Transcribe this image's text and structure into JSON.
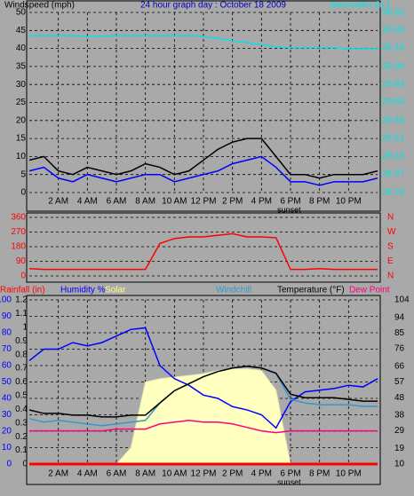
{
  "chart_data": [
    {
      "type": "line",
      "title": "24 hour graph day : October 18 2009",
      "ylabel": "Windspeed (mph)",
      "x": [
        0,
        1,
        2,
        3,
        4,
        5,
        6,
        7,
        8,
        9,
        10,
        11,
        12,
        13,
        14,
        15,
        16,
        17,
        18,
        19,
        20,
        21,
        22,
        23,
        24
      ],
      "xlim": [
        0,
        24
      ],
      "xticks": [
        {
          "value": 2,
          "label": "2 AM"
        },
        {
          "value": 4,
          "label": "4 AM"
        },
        {
          "value": 6,
          "label": "6 AM"
        },
        {
          "value": 8,
          "label": "8 AM"
        },
        {
          "value": 10,
          "label": "10 AM"
        },
        {
          "value": 12,
          "label": "12 PM"
        },
        {
          "value": 14,
          "label": "2 PM"
        },
        {
          "value": 16,
          "label": "4 PM"
        },
        {
          "value": 18,
          "label": "6 PM"
        },
        {
          "value": 20,
          "label": "8 PM"
        },
        {
          "value": 22,
          "label": "10 PM"
        }
      ],
      "annotations": [
        {
          "text": "sunset",
          "x": 17.9
        }
      ],
      "ylim": [
        0,
        50
      ],
      "yticks": [
        0,
        5,
        10,
        15,
        20,
        25,
        30,
        35,
        40,
        45,
        50
      ],
      "ycolor": "#000000",
      "y2lim": [
        28.79,
        30.52
      ],
      "y2ticks": [
        28.79,
        28.97,
        29.14,
        29.31,
        29.48,
        29.66,
        29.83,
        {
          "value": 30,
          "label": "30.00"
        },
        30.18,
        30.35,
        30.52
      ],
      "y2color": "#00e5e5",
      "grid": true,
      "series": [
        {
          "color": "#000000",
          "values": [
            9,
            10,
            6,
            5,
            7,
            6,
            5,
            6,
            8,
            7,
            5,
            6,
            9,
            12,
            14,
            15,
            15,
            10,
            5,
            5,
            4,
            5,
            5,
            5,
            6
          ]
        },
        {
          "color": "#0000ff",
          "values": [
            6,
            7,
            4,
            3,
            5,
            4,
            3,
            4,
            5,
            5,
            3,
            4,
            5,
            6,
            8,
            9,
            10,
            7,
            3,
            3,
            2,
            3,
            3,
            3,
            4
          ]
        },
        {
          "name": "Barometer (in.)",
          "color": "#00e5e5",
          "axis": "y2",
          "values": [
            30.3,
            30.3,
            30.3,
            30.3,
            30.29,
            30.29,
            30.3,
            30.3,
            30.3,
            30.3,
            30.3,
            30.3,
            30.29,
            30.27,
            30.25,
            30.23,
            30.21,
            30.19,
            30.18,
            30.18,
            30.18,
            30.18,
            30.17,
            30.17,
            30.17
          ]
        }
      ]
    },
    {
      "type": "line",
      "x": [
        0,
        1,
        2,
        3,
        4,
        5,
        6,
        7,
        8,
        9,
        10,
        11,
        12,
        13,
        14,
        15,
        16,
        17,
        18,
        19,
        20,
        21,
        22,
        23,
        24
      ],
      "xlim": [
        0,
        24
      ],
      "ylim": [
        0,
        360
      ],
      "yticks": [
        0,
        90,
        180,
        270,
        360
      ],
      "ycolor": "#ff0000",
      "y2lim": [
        0,
        360
      ],
      "y2ticks": [
        {
          "value": 0,
          "label": "N"
        },
        {
          "value": 90,
          "label": "E"
        },
        {
          "value": 180,
          "label": "S"
        },
        {
          "value": 270,
          "label": "W"
        },
        {
          "value": 360,
          "label": "N"
        }
      ],
      "y2color": "#ff0000",
      "grid": true,
      "series": [
        {
          "color": "#ff0000",
          "values": [
            45,
            40,
            40,
            40,
            40,
            40,
            40,
            40,
            40,
            200,
            230,
            240,
            240,
            250,
            260,
            240,
            240,
            235,
            40,
            40,
            45,
            40,
            40,
            40,
            40
          ]
        }
      ]
    },
    {
      "type": "line",
      "x": [
        0,
        1,
        2,
        3,
        4,
        5,
        6,
        7,
        8,
        9,
        10,
        11,
        12,
        13,
        14,
        15,
        16,
        17,
        18,
        19,
        20,
        21,
        22,
        23,
        24
      ],
      "xlim": [
        0,
        24
      ],
      "xticks": [
        {
          "value": 2,
          "label": "2 AM"
        },
        {
          "value": 4,
          "label": "4 AM"
        },
        {
          "value": 6,
          "label": "6 AM"
        },
        {
          "value": 8,
          "label": "8 AM"
        },
        {
          "value": 10,
          "label": "10 AM"
        },
        {
          "value": 12,
          "label": "12 PM"
        },
        {
          "value": 14,
          "label": "2 PM"
        },
        {
          "value": 16,
          "label": "4 PM"
        },
        {
          "value": 18,
          "label": "6 PM"
        },
        {
          "value": 20,
          "label": "8 PM"
        },
        {
          "value": 22,
          "label": "10 PM"
        }
      ],
      "annotations": [
        {
          "text": "sunset",
          "x": 17.9
        }
      ],
      "ylim": [
        0,
        100
      ],
      "yticks": [
        0,
        10,
        20,
        30,
        40,
        50,
        60,
        70,
        80,
        90,
        100
      ],
      "ycolor": "#0000ff",
      "y3lim": [
        0,
        1.2
      ],
      "y3ticks": [
        0,
        0.1,
        0.2,
        0.3,
        0.4,
        0.5,
        0.6,
        0.7,
        0.8,
        0.9,
        1,
        1.1,
        1.2
      ],
      "y3color": "#000000",
      "y2lim": [
        10,
        104
      ],
      "y2ticks": [
        10,
        19,
        29,
        38,
        48,
        57,
        66,
        76,
        85,
        94,
        104
      ],
      "y2color": "#000000",
      "grid": true,
      "series": [
        {
          "name": "Solar",
          "color": "#ffffc0",
          "area": true,
          "values": [
            0,
            0,
            0,
            0,
            0,
            0,
            0,
            10,
            50,
            52,
            53,
            54,
            55,
            57,
            58,
            58,
            57,
            45,
            0,
            0,
            0,
            0,
            0,
            0,
            0
          ]
        },
        {
          "name": "Rainfall (in)",
          "color": "#ff0000",
          "axis": "y3",
          "values": [
            0,
            0,
            0,
            0,
            0,
            0,
            0,
            0,
            0,
            0,
            0,
            0,
            0,
            0,
            0,
            0,
            0,
            0,
            0,
            0,
            0,
            0,
            0,
            0,
            0
          ]
        },
        {
          "name": "Humidity %",
          "color": "#0000ff",
          "values": [
            63,
            70,
            70,
            74,
            72,
            74,
            78,
            82,
            83,
            60,
            52,
            48,
            42,
            40,
            35,
            33,
            30,
            22,
            38,
            44,
            45,
            46,
            48,
            47,
            52
          ]
        },
        {
          "name": "Windchill",
          "color": "#3399cc",
          "axis": "y2",
          "values": [
            36,
            34,
            35,
            34,
            33,
            32,
            33,
            34,
            35,
            45,
            52,
            56,
            60,
            63,
            65,
            66,
            65,
            62,
            47,
            45,
            44,
            44,
            44,
            43,
            43
          ]
        },
        {
          "name": "Temperature (°F)",
          "color": "#000000",
          "axis": "y2",
          "values": [
            41,
            39,
            39,
            38,
            38,
            37,
            37,
            38,
            38,
            45,
            52,
            56,
            60,
            63,
            65,
            66,
            65,
            62,
            50,
            48,
            48,
            48,
            47,
            46,
            46
          ]
        },
        {
          "name": "Dew Point",
          "color": "#ff0080",
          "axis": "y2",
          "values": [
            29,
            29,
            29,
            29,
            29,
            29,
            30,
            30,
            30,
            33,
            34,
            35,
            34,
            34,
            33,
            31,
            29,
            28,
            29,
            29,
            29,
            29,
            29,
            29,
            29
          ]
        }
      ]
    }
  ]
}
